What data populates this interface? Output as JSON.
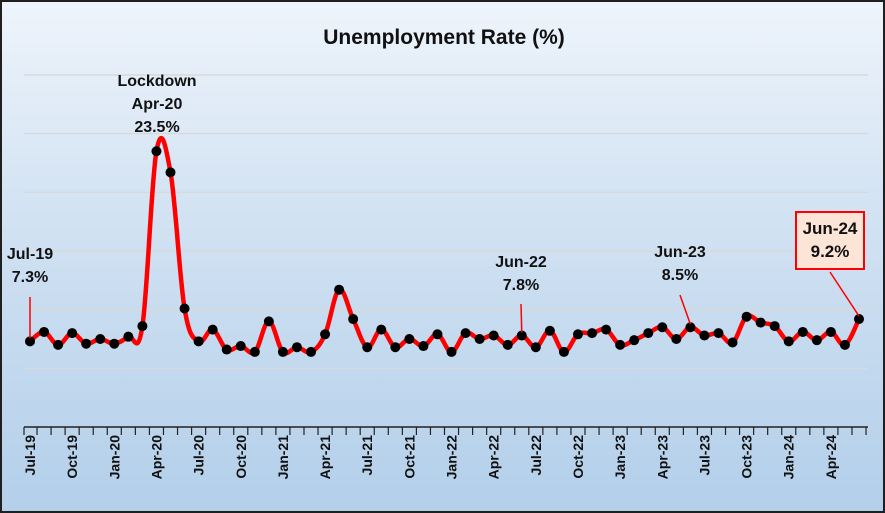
{
  "chart_data": {
    "type": "line",
    "title": "Unemployment Rate (%)",
    "xlabel": "",
    "ylabel": "",
    "ylim": [
      0,
      30
    ],
    "grid": true,
    "y_tick_labels_shown": false,
    "line_color": "#ff0000",
    "marker_color": "#000000",
    "x": [
      "Jul-19",
      "Aug-19",
      "Sep-19",
      "Oct-19",
      "Nov-19",
      "Dec-19",
      "Jan-20",
      "Feb-20",
      "Mar-20",
      "Apr-20",
      "May-20",
      "Jun-20",
      "Jul-20",
      "Aug-20",
      "Sep-20",
      "Oct-20",
      "Nov-20",
      "Dec-20",
      "Jan-21",
      "Feb-21",
      "Mar-21",
      "Apr-21",
      "May-21",
      "Jun-21",
      "Jul-21",
      "Aug-21",
      "Sep-21",
      "Oct-21",
      "Nov-21",
      "Dec-21",
      "Jan-22",
      "Feb-22",
      "Mar-22",
      "Apr-22",
      "May-22",
      "Jun-22",
      "Jul-22",
      "Aug-22",
      "Sep-22",
      "Oct-22",
      "Nov-22",
      "Dec-22",
      "Jan-23",
      "Feb-23",
      "Mar-23",
      "Apr-23",
      "May-23",
      "Jun-23",
      "Jul-23",
      "Aug-23",
      "Sep-23",
      "Oct-23",
      "Nov-23",
      "Dec-23",
      "Jan-24",
      "Feb-24",
      "Mar-24",
      "Apr-24",
      "May-24",
      "Jun-24"
    ],
    "values": [
      7.3,
      8.1,
      7.0,
      8.0,
      7.1,
      7.5,
      7.1,
      7.7,
      8.6,
      23.5,
      21.7,
      10.1,
      7.3,
      8.3,
      6.6,
      6.9,
      6.4,
      9.0,
      6.4,
      6.8,
      6.4,
      7.9,
      11.7,
      9.2,
      6.8,
      8.3,
      6.8,
      7.5,
      6.9,
      7.9,
      6.4,
      8.0,
      7.5,
      7.8,
      7.0,
      7.8,
      6.8,
      8.2,
      6.4,
      7.9,
      8.0,
      8.3,
      7.0,
      7.4,
      8.0,
      8.5,
      7.5,
      8.5,
      7.8,
      8.0,
      7.2,
      9.4,
      8.9,
      8.6,
      7.3,
      8.1,
      7.4,
      8.1,
      7.0,
      9.2
    ],
    "x_tick_labels": [
      "Jul-19",
      "Oct-19",
      "Jan-20",
      "Apr-20",
      "Jul-20",
      "Oct-20",
      "Jan-21",
      "Apr-21",
      "Jul-21",
      "Oct-21",
      "Jan-22",
      "Apr-22",
      "Jul-22",
      "Oct-22",
      "Jan-23",
      "Apr-23",
      "Jul-23",
      "Oct-23",
      "Jan-24",
      "Apr-24"
    ],
    "annotations": [
      {
        "x": "Jul-19",
        "lines": [
          "Jul-19",
          "7.3%"
        ]
      },
      {
        "x": "Apr-20",
        "lines": [
          "Lockdown",
          "Apr-20",
          "23.5%"
        ]
      },
      {
        "x": "Jun-22",
        "lines": [
          "Jun-22",
          "7.8%"
        ]
      },
      {
        "x": "Jun-23",
        "lines": [
          "Jun-23",
          "8.5%"
        ]
      },
      {
        "x": "Jun-24",
        "lines": [
          "Jun-24",
          "9.2%"
        ],
        "boxed": true,
        "box_fill": "#fce4d6",
        "box_border": "#ff0000"
      }
    ]
  }
}
